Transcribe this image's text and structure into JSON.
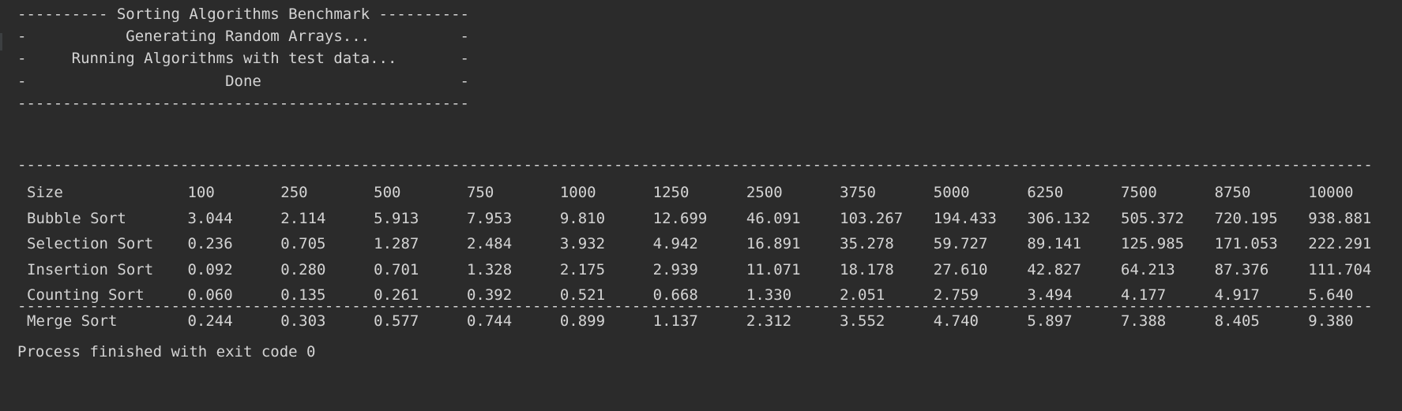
{
  "banner": {
    "title_line": "---------- Sorting Algorithms Benchmark ----------",
    "lines": [
      "-           Generating Random Arrays...          -",
      "-     Running Algorithms with test data...       -",
      "-                      Done                      -"
    ],
    "bottom_rule": "--------------------------------------------------"
  },
  "table": {
    "rule": "--------------------------------------------------------------------------------------------------------------------------------------------------------",
    "header_label": "Size",
    "sizes": [
      "100",
      "250",
      "500",
      "750",
      "1000",
      "1250",
      "2500",
      "3750",
      "5000",
      "6250",
      "7500",
      "8750",
      "10000"
    ],
    "rows": [
      {
        "name": "Bubble Sort",
        "values": [
          "3.044",
          "2.114",
          "5.913",
          "7.953",
          "9.810",
          "12.699",
          "46.091",
          "103.267",
          "194.433",
          "306.132",
          "505.372",
          "720.195",
          "938.881"
        ]
      },
      {
        "name": "Selection Sort",
        "values": [
          "0.236",
          "0.705",
          "1.287",
          "2.484",
          "3.932",
          "4.942",
          "16.891",
          "35.278",
          "59.727",
          "89.141",
          "125.985",
          "171.053",
          "222.291"
        ]
      },
      {
        "name": "Insertion Sort",
        "values": [
          "0.092",
          "0.280",
          "0.701",
          "1.328",
          "2.175",
          "2.939",
          "11.071",
          "18.178",
          "27.610",
          "42.827",
          "64.213",
          "87.376",
          "111.704"
        ]
      },
      {
        "name": "Counting Sort",
        "values": [
          "0.060",
          "0.135",
          "0.261",
          "0.392",
          "0.521",
          "0.668",
          "1.330",
          "2.051",
          "2.759",
          "3.494",
          "4.177",
          "4.917",
          "5.640"
        ]
      },
      {
        "name": "Merge Sort",
        "values": [
          "0.244",
          "0.303",
          "0.577",
          "0.744",
          "0.899",
          "1.137",
          "2.312",
          "3.552",
          "4.740",
          "5.897",
          "7.388",
          "8.405",
          "9.380"
        ]
      }
    ]
  },
  "footer": {
    "exit_message": "Process finished with exit code 0"
  }
}
